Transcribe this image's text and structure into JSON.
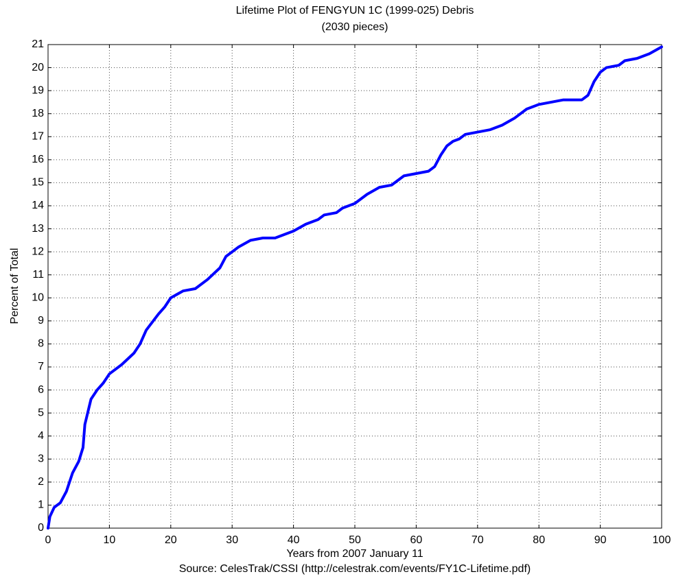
{
  "chart_data": {
    "type": "line",
    "title": "Lifetime Plot of FENGYUN 1C (1999-025) Debris",
    "subtitle": "(2030 pieces)",
    "x_label": "Years from 2007 January 11",
    "y_label": "Percent of Total",
    "source": "Source: CelesTrak/CSSI (http://celestrak.com/events/FY1C-Lifetime.pdf)",
    "x": [
      0,
      0.3,
      1,
      2,
      3,
      4,
      5,
      5.7,
      6,
      7,
      8,
      9,
      10,
      12,
      14,
      15,
      16,
      18,
      19,
      20,
      22,
      24,
      26,
      28,
      29,
      31,
      33,
      35,
      37,
      38,
      40,
      42,
      44,
      45,
      47,
      48,
      50,
      52,
      54,
      56,
      58,
      60,
      62,
      63,
      64,
      65,
      66,
      67,
      68,
      70,
      72,
      74,
      76,
      78,
      80,
      82,
      84,
      87,
      88,
      89,
      90,
      91,
      93,
      94,
      96,
      98,
      100
    ],
    "values": [
      0,
      0.5,
      0.9,
      1.1,
      1.6,
      2.4,
      2.9,
      3.5,
      4.5,
      5.6,
      6.0,
      6.3,
      6.7,
      7.1,
      7.6,
      8.0,
      8.6,
      9.3,
      9.6,
      10.0,
      10.3,
      10.4,
      10.8,
      11.3,
      11.8,
      12.2,
      12.5,
      12.6,
      12.6,
      12.7,
      12.9,
      13.2,
      13.4,
      13.6,
      13.7,
      13.9,
      14.1,
      14.5,
      14.8,
      14.9,
      15.3,
      15.4,
      15.5,
      15.7,
      16.2,
      16.6,
      16.8,
      16.9,
      17.1,
      17.2,
      17.3,
      17.5,
      17.8,
      18.2,
      18.4,
      18.5,
      18.6,
      18.6,
      18.8,
      19.4,
      19.8,
      20.0,
      20.1,
      20.3,
      20.4,
      20.6,
      20.9
    ],
    "color": "#0000ff",
    "xlim": [
      0,
      100
    ],
    "xticks": [
      0,
      10,
      20,
      30,
      40,
      50,
      60,
      70,
      80,
      90,
      100
    ],
    "ylim": [
      0,
      21
    ],
    "yticks": [
      0,
      1,
      2,
      3,
      4,
      5,
      6,
      7,
      8,
      9,
      10,
      11,
      12,
      13,
      14,
      15,
      16,
      17,
      18,
      19,
      20,
      21
    ],
    "grid": true
  }
}
